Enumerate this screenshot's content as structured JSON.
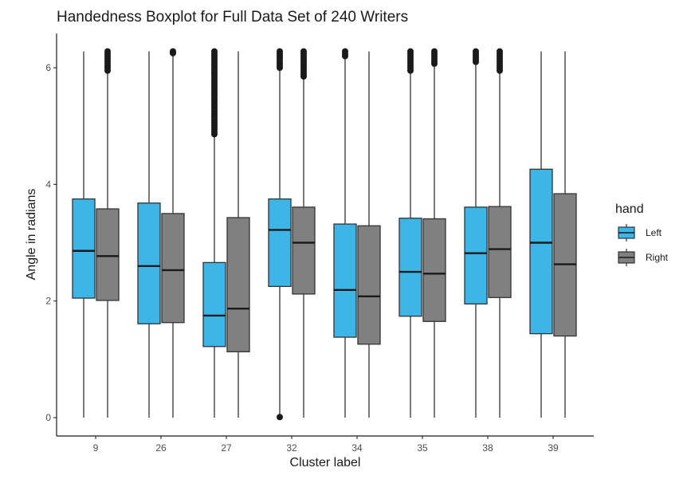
{
  "chart_data": {
    "type": "boxplot",
    "title": "Handedness Boxplot for Full Data Set of 240 Writers",
    "xlabel": "Cluster label",
    "ylabel": "Angle in radians",
    "ylim": [
      -0.3,
      6.6
    ],
    "y_ticks": [
      0,
      2,
      4,
      6
    ],
    "grid": false,
    "categories": [
      "9",
      "26",
      "27",
      "32",
      "34",
      "35",
      "38",
      "39"
    ],
    "legend": {
      "title": "hand",
      "position": "right",
      "entries": [
        {
          "label": "Left",
          "color": "#3db5e6"
        },
        {
          "label": "Right",
          "color": "#808080"
        }
      ]
    },
    "series": [
      {
        "name": "Left",
        "color": "#3db5e6",
        "boxes": [
          {
            "category": "9",
            "min": 0,
            "q1": 2.05,
            "median": 2.86,
            "q3": 3.75,
            "max": 6.28,
            "outliers_range": null
          },
          {
            "category": "26",
            "min": 0,
            "q1": 1.61,
            "median": 2.6,
            "q3": 3.68,
            "max": 6.28,
            "outliers_range": null
          },
          {
            "category": "27",
            "min": 0,
            "q1": 1.22,
            "median": 1.75,
            "q3": 2.66,
            "max": 4.86,
            "outliers_range": [
              4.86,
              6.28
            ]
          },
          {
            "category": "32",
            "min": 0.06,
            "q1": 2.25,
            "median": 3.22,
            "q3": 3.75,
            "max": 6.0,
            "outliers_range": [
              6.0,
              6.28
            ],
            "low_outlier": 0.01
          },
          {
            "category": "34",
            "min": 0,
            "q1": 1.38,
            "median": 2.19,
            "q3": 3.32,
            "max": 6.2,
            "outliers_range": [
              6.2,
              6.28
            ]
          },
          {
            "category": "35",
            "min": 0,
            "q1": 1.74,
            "median": 2.5,
            "q3": 3.42,
            "max": 5.95,
            "outliers_range": [
              5.95,
              6.28
            ]
          },
          {
            "category": "38",
            "min": 0,
            "q1": 1.95,
            "median": 2.82,
            "q3": 3.61,
            "max": 6.1,
            "outliers_range": [
              6.1,
              6.28
            ]
          },
          {
            "category": "39",
            "min": 0,
            "q1": 1.44,
            "median": 3.0,
            "q3": 4.26,
            "max": 6.28,
            "outliers_range": null
          }
        ]
      },
      {
        "name": "Right",
        "color": "#808080",
        "boxes": [
          {
            "category": "9",
            "min": 0,
            "q1": 2.01,
            "median": 2.77,
            "q3": 3.58,
            "max": 5.95,
            "outliers_range": [
              5.95,
              6.28
            ]
          },
          {
            "category": "26",
            "min": 0,
            "q1": 1.63,
            "median": 2.53,
            "q3": 3.5,
            "max": 6.25,
            "outliers_range": [
              6.25,
              6.28
            ]
          },
          {
            "category": "27",
            "min": 0,
            "q1": 1.13,
            "median": 1.87,
            "q3": 3.43,
            "max": 6.28,
            "outliers_range": null
          },
          {
            "category": "32",
            "min": 0,
            "q1": 2.12,
            "median": 3.0,
            "q3": 3.61,
            "max": 5.85,
            "outliers_range": [
              5.85,
              6.28
            ]
          },
          {
            "category": "34",
            "min": 0,
            "q1": 1.26,
            "median": 2.08,
            "q3": 3.29,
            "max": 6.28,
            "outliers_range": null
          },
          {
            "category": "35",
            "min": 0,
            "q1": 1.65,
            "median": 2.47,
            "q3": 3.41,
            "max": 6.07,
            "outliers_range": [
              6.07,
              6.28
            ]
          },
          {
            "category": "38",
            "min": 0,
            "q1": 2.06,
            "median": 2.89,
            "q3": 3.62,
            "max": 5.95,
            "outliers_range": [
              5.95,
              6.28
            ]
          },
          {
            "category": "39",
            "min": 0,
            "q1": 1.4,
            "median": 2.63,
            "q3": 3.84,
            "max": 6.28,
            "outliers_range": null
          }
        ]
      }
    ]
  }
}
